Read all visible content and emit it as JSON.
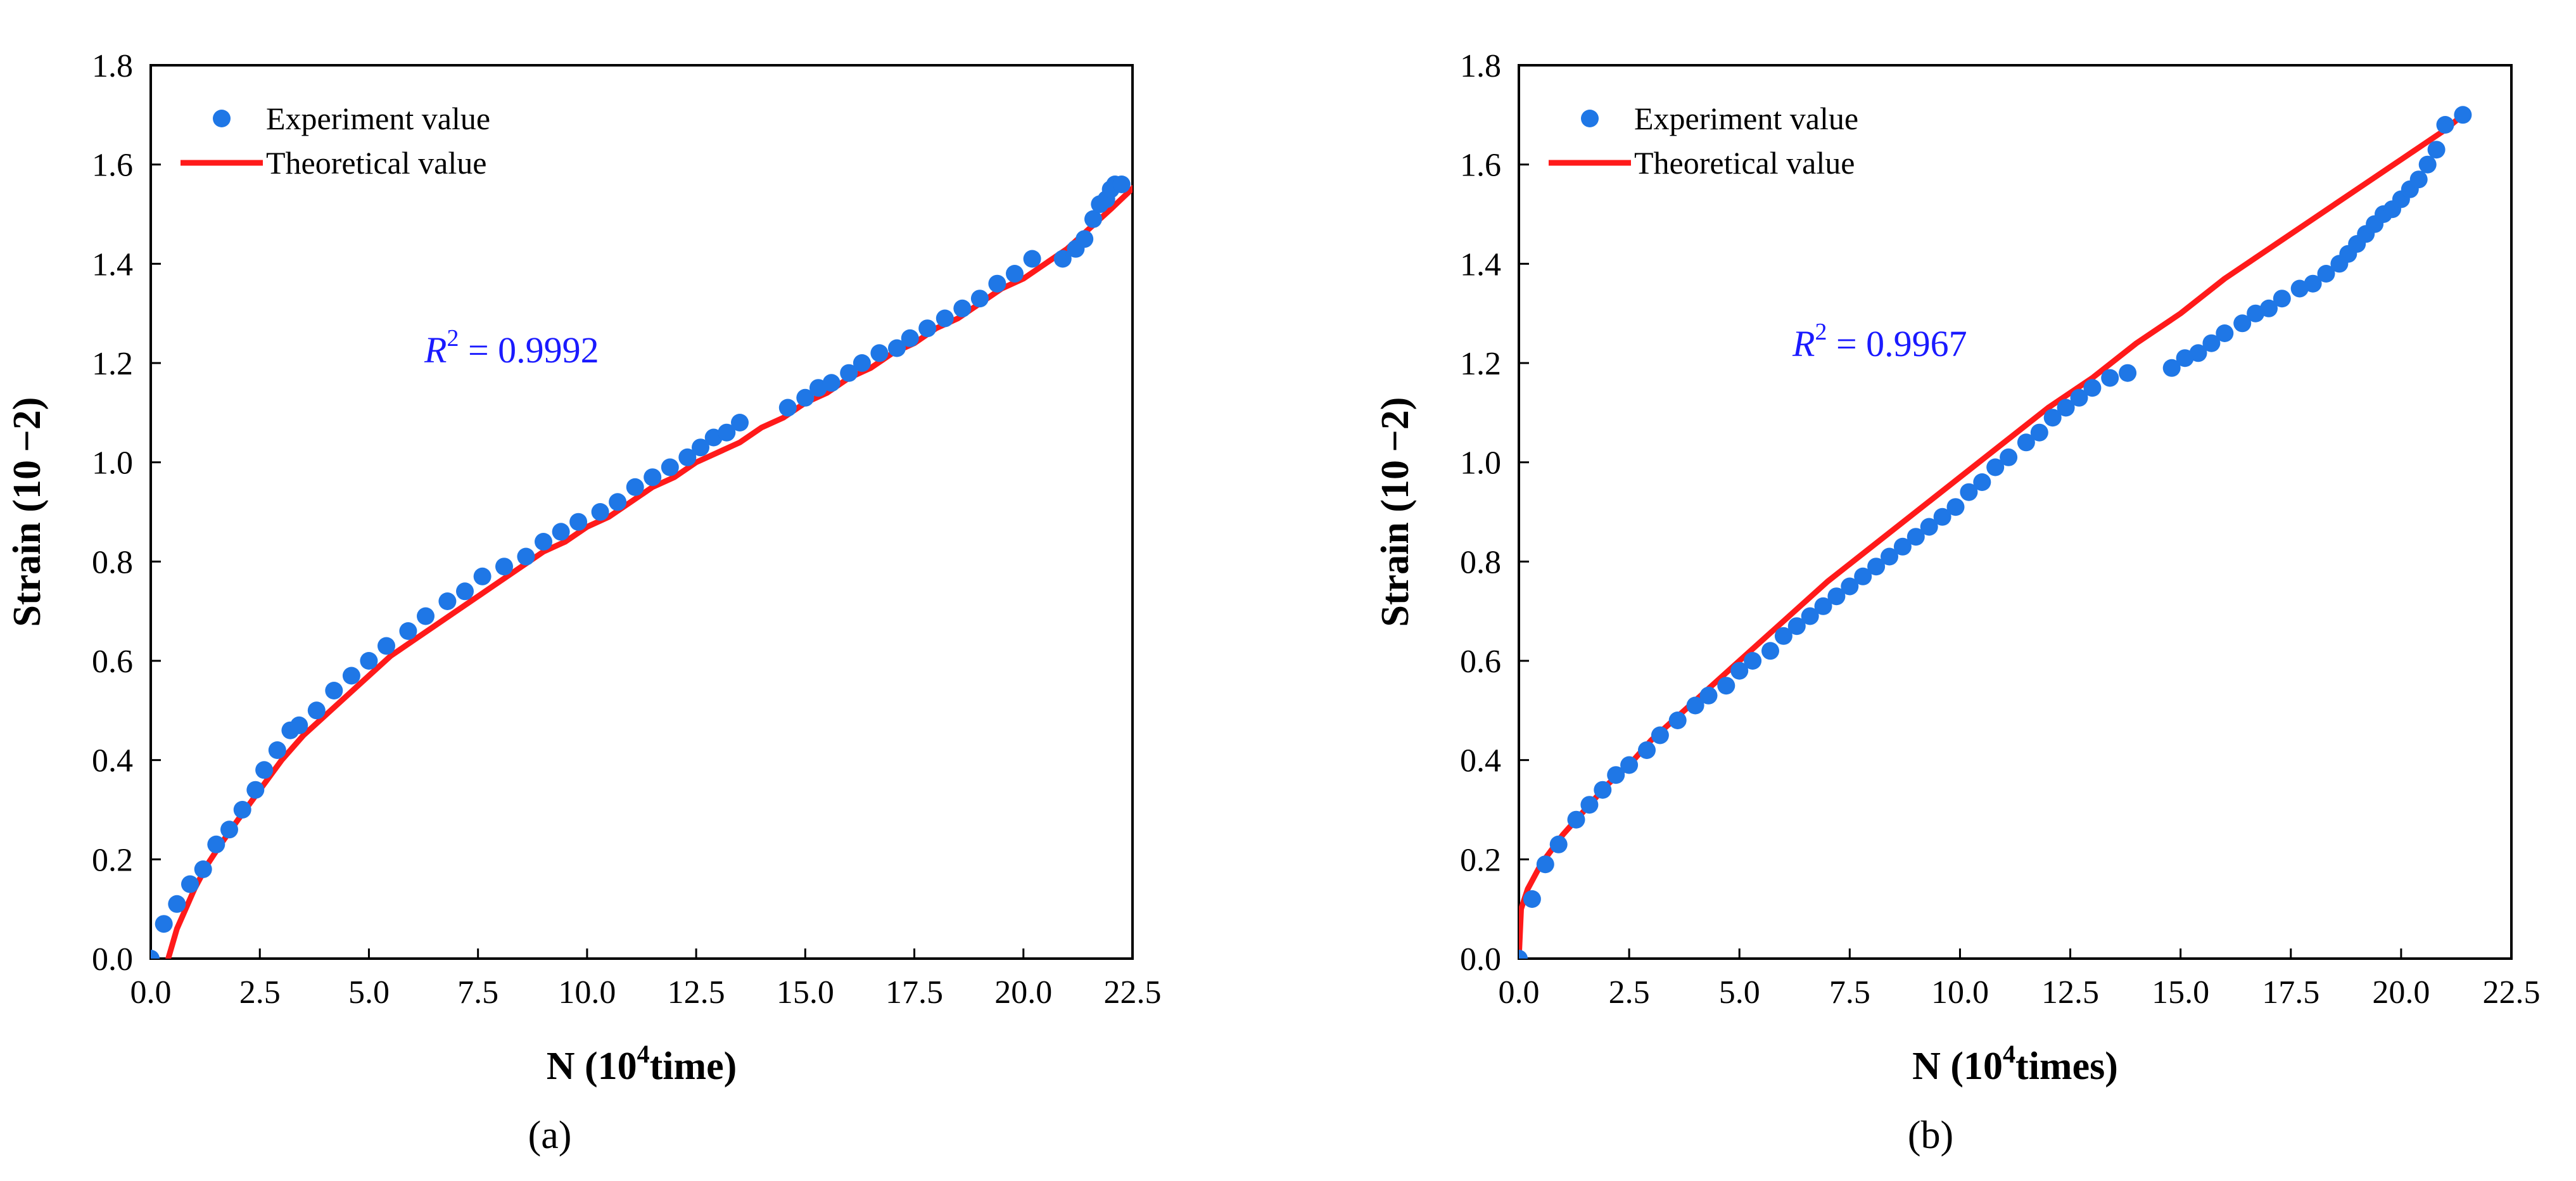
{
  "colors": {
    "experiment": "#1f77e6",
    "theoretical": "#ff1a1a",
    "annotation": "#1a1aff",
    "axis": "#000000"
  },
  "chart_data": [
    {
      "type": "scatter",
      "panel_label": "(a)",
      "xlabel_main": "N (10",
      "xlabel_sup": "4",
      "xlabel_tail": "time)",
      "ylabel": "Strain (10 −2)",
      "xlim": [
        0,
        22.5
      ],
      "ylim": [
        0,
        1.8
      ],
      "xticks": [
        "0.0",
        "2.5",
        "5.0",
        "7.5",
        "10.0",
        "12.5",
        "15.0",
        "17.5",
        "20.0",
        "22.5"
      ],
      "yticks": [
        "0.0",
        "0.2",
        "0.4",
        "0.6",
        "0.8",
        "1.0",
        "1.2",
        "1.4",
        "1.6",
        "1.8"
      ],
      "legend": [
        "Experiment value",
        "Theoretical value"
      ],
      "legend_position": "top-left",
      "annotation": {
        "symbol": "R",
        "sup": "2",
        "text": " = 0.9992"
      },
      "series": [
        {
          "name": "Experiment value",
          "kind": "scatter",
          "x": [
            0.0,
            0.3,
            0.6,
            0.9,
            1.2,
            1.5,
            1.8,
            2.1,
            2.4,
            2.6,
            2.9,
            3.2,
            3.4,
            3.8,
            4.2,
            4.6,
            5.0,
            5.4,
            5.9,
            6.3,
            6.8,
            7.2,
            7.6,
            8.1,
            8.6,
            9.0,
            9.4,
            9.8,
            10.3,
            10.7,
            11.1,
            11.5,
            11.9,
            12.3,
            12.6,
            12.9,
            13.2,
            13.5,
            14.6,
            15.0,
            15.3,
            15.6,
            16.0,
            16.3,
            16.7,
            17.1,
            17.4,
            17.8,
            18.2,
            18.6,
            19.0,
            19.4,
            19.8,
            20.2,
            20.9,
            21.2,
            21.4,
            21.6,
            21.75,
            21.9,
            22.0,
            22.1,
            22.25
          ],
          "y": [
            0.0,
            0.07,
            0.11,
            0.15,
            0.18,
            0.23,
            0.26,
            0.3,
            0.34,
            0.38,
            0.42,
            0.46,
            0.47,
            0.5,
            0.54,
            0.57,
            0.6,
            0.63,
            0.66,
            0.69,
            0.72,
            0.74,
            0.77,
            0.79,
            0.81,
            0.84,
            0.86,
            0.88,
            0.9,
            0.92,
            0.95,
            0.97,
            0.99,
            1.01,
            1.03,
            1.05,
            1.06,
            1.08,
            1.11,
            1.13,
            1.15,
            1.16,
            1.18,
            1.2,
            1.22,
            1.23,
            1.25,
            1.27,
            1.29,
            1.31,
            1.33,
            1.36,
            1.38,
            1.41,
            1.41,
            1.43,
            1.45,
            1.49,
            1.52,
            1.53,
            1.55,
            1.56,
            1.56
          ]
        },
        {
          "name": "Theoretical value",
          "kind": "line",
          "x": [
            0.4,
            0.6,
            0.8,
            1.0,
            1.3,
            1.6,
            2.0,
            2.5,
            3.0,
            3.5,
            4.0,
            4.5,
            5.0,
            5.5,
            6.0,
            6.5,
            7.0,
            7.5,
            8.0,
            8.5,
            9.0,
            9.5,
            10.0,
            10.5,
            11.0,
            11.5,
            12.0,
            12.5,
            13.0,
            13.5,
            14.0,
            14.5,
            15.0,
            15.5,
            16.0,
            16.5,
            17.0,
            17.5,
            18.0,
            18.5,
            19.0,
            19.5,
            20.0,
            20.5,
            21.0,
            21.5,
            22.0,
            22.6
          ],
          "y": [
            0.0,
            0.06,
            0.1,
            0.14,
            0.19,
            0.23,
            0.28,
            0.34,
            0.4,
            0.45,
            0.49,
            0.53,
            0.57,
            0.61,
            0.64,
            0.67,
            0.7,
            0.73,
            0.76,
            0.79,
            0.82,
            0.84,
            0.87,
            0.89,
            0.92,
            0.95,
            0.97,
            1.0,
            1.02,
            1.04,
            1.07,
            1.09,
            1.12,
            1.14,
            1.17,
            1.19,
            1.22,
            1.24,
            1.27,
            1.29,
            1.32,
            1.35,
            1.37,
            1.4,
            1.43,
            1.47,
            1.51,
            1.56
          ]
        }
      ]
    },
    {
      "type": "scatter",
      "panel_label": "(b)",
      "xlabel_main": "N (10",
      "xlabel_sup": "4",
      "xlabel_tail": "times)",
      "ylabel": "Strain (10 −2)",
      "xlim": [
        0,
        22.5
      ],
      "ylim": [
        0,
        1.8
      ],
      "xticks": [
        "0.0",
        "2.5",
        "5.0",
        "7.5",
        "10.0",
        "12.5",
        "15.0",
        "17.5",
        "20.0",
        "22.5"
      ],
      "yticks": [
        "0.0",
        "0.2",
        "0.4",
        "0.6",
        "0.8",
        "1.0",
        "1.2",
        "1.4",
        "1.6",
        "1.8"
      ],
      "legend": [
        "Experiment value",
        "Theoretical value"
      ],
      "legend_position": "top-left",
      "annotation": {
        "symbol": "R",
        "sup": "2",
        "text": " = 0.9967"
      },
      "series": [
        {
          "name": "Experiment value",
          "kind": "scatter",
          "x": [
            0.0,
            0.3,
            0.6,
            0.9,
            1.3,
            1.6,
            1.9,
            2.2,
            2.5,
            2.9,
            3.2,
            3.6,
            4.0,
            4.3,
            4.7,
            5.0,
            5.3,
            5.7,
            6.0,
            6.3,
            6.6,
            6.9,
            7.2,
            7.5,
            7.8,
            8.1,
            8.4,
            8.7,
            9.0,
            9.3,
            9.6,
            9.9,
            10.2,
            10.5,
            10.8,
            11.1,
            11.5,
            11.8,
            12.1,
            12.4,
            12.7,
            13.0,
            13.4,
            13.8,
            14.8,
            15.1,
            15.4,
            15.7,
            16.0,
            16.4,
            16.7,
            17.0,
            17.3,
            17.7,
            18.0,
            18.3,
            18.6,
            18.8,
            19.0,
            19.2,
            19.4,
            19.6,
            19.8,
            20.0,
            20.2,
            20.4,
            20.6,
            20.8,
            21.0,
            21.4
          ],
          "y": [
            0.0,
            0.12,
            0.19,
            0.23,
            0.28,
            0.31,
            0.34,
            0.37,
            0.39,
            0.42,
            0.45,
            0.48,
            0.51,
            0.53,
            0.55,
            0.58,
            0.6,
            0.62,
            0.65,
            0.67,
            0.69,
            0.71,
            0.73,
            0.75,
            0.77,
            0.79,
            0.81,
            0.83,
            0.85,
            0.87,
            0.89,
            0.91,
            0.94,
            0.96,
            0.99,
            1.01,
            1.04,
            1.06,
            1.09,
            1.11,
            1.13,
            1.15,
            1.17,
            1.18,
            1.19,
            1.21,
            1.22,
            1.24,
            1.26,
            1.28,
            1.3,
            1.31,
            1.33,
            1.35,
            1.36,
            1.38,
            1.4,
            1.42,
            1.44,
            1.46,
            1.48,
            1.5,
            1.51,
            1.53,
            1.55,
            1.57,
            1.6,
            1.63,
            1.68,
            1.7
          ]
        },
        {
          "name": "Theoretical value",
          "kind": "line",
          "x": [
            0.0,
            0.05,
            0.2,
            0.5,
            1.0,
            1.5,
            2.0,
            2.5,
            3.0,
            4.0,
            5.0,
            6.0,
            7.0,
            8.0,
            9.0,
            10.0,
            11.0,
            12.0,
            13.0,
            14.0,
            15.0,
            16.0,
            17.0,
            18.0,
            19.0,
            20.0,
            21.0,
            21.4
          ],
          "y": [
            0.0,
            0.1,
            0.14,
            0.19,
            0.25,
            0.3,
            0.35,
            0.39,
            0.44,
            0.52,
            0.6,
            0.68,
            0.76,
            0.83,
            0.9,
            0.97,
            1.04,
            1.11,
            1.17,
            1.24,
            1.3,
            1.37,
            1.43,
            1.49,
            1.55,
            1.61,
            1.67,
            1.7
          ]
        }
      ]
    }
  ]
}
